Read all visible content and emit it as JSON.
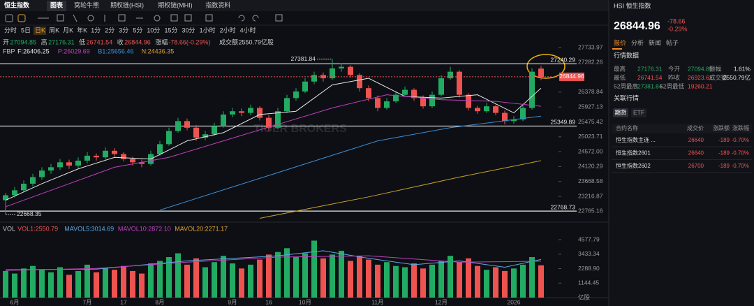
{
  "tabs": [
    "恒生指数",
    "图表",
    "窝轮牛熊",
    "期权链(HSI)",
    "期权链(MHI)",
    "指数资料"
  ],
  "periods": [
    "分时",
    "5日",
    "日K",
    "周K",
    "月K",
    "年K",
    "1分",
    "2分",
    "3分",
    "5分",
    "10分",
    "15分",
    "30分",
    "1小时",
    "2小时",
    "4小时"
  ],
  "quote": [
    {
      "label": "开",
      "value": "27094.85"
    },
    {
      "label": "高",
      "value": "27176.31"
    },
    {
      "label": "低",
      "value": "26741.54"
    },
    {
      "label": "收",
      "value": "26844.96"
    },
    {
      "label": "涨幅",
      "value": "-78.66(-0.29%)"
    },
    {
      "label": "成交额",
      "value": "2550.79亿股"
    }
  ],
  "indicators": {
    "name": "FBP",
    "items": [
      "F:26406.25",
      "P:26029.69",
      "B1:25656.46",
      "N:24436.35"
    ],
    "colors": [
      "#e6e6e6",
      "#c040c0",
      "#3a8fd8",
      "#e0a030"
    ]
  },
  "vol_indicators": {
    "name": "VOL",
    "items": [
      "VOL1:2550.79",
      "MAVOL5:3014.69",
      "MAVOL10:2872.10",
      "MAVOL20:2271.17"
    ],
    "colors": [
      "#ef5350",
      "#5aa9e6",
      "#c040c0",
      "#e0a030"
    ]
  },
  "chart": {
    "type": "candlestick",
    "watermark": "TIGER BROKERS",
    "up_color": "#22ab63",
    "down_color": "#ef5350",
    "ylim": [
      22496,
      27904
    ],
    "yticks": [
      27733.97,
      27282.26,
      26378.84,
      25927.13,
      25475.42,
      25023.71,
      {
        "value": 24572,
        "label": "24572.00"
      },
      24120.29,
      23668.58,
      23216.87,
      22765.16
    ],
    "levels": [
      27240.29,
      25349.89,
      22768.73
    ],
    "high_label": 27381.84,
    "low_label": 22668.35,
    "categories": [
      null,
      "6月",
      null,
      null,
      null,
      null,
      null,
      null,
      null,
      "7月",
      null,
      null,
      null,
      "17",
      null,
      null,
      null,
      "8月",
      null,
      null,
      null,
      null,
      null,
      null,
      null,
      "9月",
      null,
      null,
      null,
      "16",
      null,
      null,
      null,
      "10月",
      null,
      null,
      null,
      null,
      null,
      null,
      null,
      "11月",
      null,
      null,
      null,
      null,
      null,
      null,
      "12月",
      null,
      null,
      null,
      null,
      null,
      null,
      null,
      "2026",
      null,
      null,
      null
    ],
    "candles": [
      [
        23100,
        23320,
        22668.35,
        23250
      ],
      [
        23250,
        23500,
        23180,
        23400
      ],
      [
        23400,
        23700,
        23350,
        23600
      ],
      [
        23600,
        23900,
        23520,
        23800
      ],
      [
        23800,
        24100,
        23720,
        24000
      ],
      [
        24000,
        24200,
        23900,
        24100
      ],
      [
        24100,
        24350,
        24020,
        24250
      ],
      [
        24250,
        24330,
        24050,
        24150
      ],
      [
        24150,
        24400,
        24080,
        24300
      ],
      [
        24300,
        24560,
        24220,
        24450
      ],
      [
        24450,
        24520,
        24300,
        24400
      ],
      [
        24400,
        24700,
        24330,
        24600
      ],
      [
        24600,
        24680,
        24420,
        24500
      ],
      [
        24500,
        24560,
        24280,
        24350
      ],
      [
        24350,
        24420,
        24150,
        24250
      ],
      [
        24250,
        24330,
        24100,
        24200
      ],
      [
        24200,
        24600,
        24150,
        24500
      ],
      [
        24500,
        24900,
        24450,
        24800
      ],
      [
        24800,
        25300,
        24750,
        25200
      ],
      [
        25200,
        25600,
        25150,
        25500
      ],
      [
        25500,
        25580,
        25220,
        25300
      ],
      [
        25300,
        25380,
        24900,
        25000
      ],
      [
        25000,
        25200,
        24920,
        25100
      ],
      [
        25100,
        25450,
        25050,
        25350
      ],
      [
        25350,
        25800,
        25300,
        25700
      ],
      [
        25700,
        25900,
        25620,
        25800
      ],
      [
        25800,
        25880,
        25650,
        25750
      ],
      [
        25750,
        26000,
        25680,
        25900
      ],
      [
        25900,
        25950,
        25520,
        25600
      ],
      [
        25600,
        25680,
        25200,
        25300
      ],
      [
        25300,
        25900,
        25250,
        25800
      ],
      [
        25800,
        26300,
        25750,
        26200
      ],
      [
        26200,
        26500,
        26120,
        26400
      ],
      [
        26400,
        26800,
        26350,
        26700
      ],
      [
        26700,
        27000,
        26620,
        26900
      ],
      [
        26900,
        26980,
        26700,
        26800
      ],
      [
        26800,
        27381.84,
        26750,
        27100
      ],
      [
        27100,
        27250,
        27000,
        27150
      ],
      [
        27150,
        27200,
        26820,
        26900
      ],
      [
        26900,
        26950,
        26400,
        26500
      ],
      [
        26500,
        26580,
        26100,
        26200
      ],
      [
        26200,
        26280,
        25800,
        25900
      ],
      [
        25900,
        26200,
        25850,
        26100
      ],
      [
        26100,
        26400,
        26050,
        26300
      ],
      [
        26300,
        26550,
        26250,
        26450
      ],
      [
        26450,
        26500,
        26120,
        26200
      ],
      [
        26200,
        26280,
        25880,
        25950
      ],
      [
        25950,
        26400,
        25900,
        26300
      ],
      [
        26300,
        26900,
        26250,
        26800
      ],
      [
        26800,
        27150,
        26750,
        27000
      ],
      [
        27000,
        27050,
        26220,
        26300
      ],
      [
        26300,
        26350,
        25820,
        25900
      ],
      [
        25900,
        25960,
        25720,
        25800
      ],
      [
        25800,
        26050,
        25750,
        25950
      ],
      [
        25950,
        26000,
        25680,
        25750
      ],
      [
        25750,
        25820,
        25400,
        25500
      ],
      [
        25500,
        25650,
        25420,
        25550
      ],
      [
        25550,
        26000,
        25500,
        25900
      ],
      [
        25900,
        27100,
        25850,
        27000
      ],
      [
        27094.85,
        27176.31,
        26741.54,
        26844.96
      ]
    ],
    "moving_averages": [
      {
        "color": "#e6e6e6",
        "x": [
          0,
          4,
          8,
          12,
          16,
          20,
          24,
          28,
          32,
          36,
          40,
          44,
          48,
          52,
          56,
          59
        ],
        "values": [
          23100,
          23600,
          24050,
          24400,
          24350,
          24900,
          25150,
          25700,
          25800,
          26600,
          26800,
          26250,
          26200,
          26300,
          25750,
          26500
        ]
      },
      {
        "color": "#c040c0",
        "x": [
          0,
          6,
          12,
          18,
          24,
          30,
          36,
          42,
          48,
          54,
          59
        ],
        "values": [
          22900,
          23500,
          24100,
          24400,
          24900,
          25400,
          25900,
          26300,
          26150,
          26100,
          25950
        ]
      },
      {
        "color": "#3a8fd8",
        "x": [
          17,
          25,
          33,
          41,
          49,
          59
        ],
        "values": [
          22800,
          23500,
          24200,
          24900,
          25300,
          25650
        ]
      },
      {
        "color": "#c9a227",
        "x": [
          28,
          40,
          50,
          59
        ],
        "values": [
          22550,
          23200,
          23800,
          24300
        ]
      }
    ],
    "volumes": [
      2100,
      1900,
      2300,
      2500,
      2200,
      2000,
      2400,
      1800,
      2100,
      2600,
      2000,
      2300,
      2200,
      2500,
      2100,
      1900,
      2700,
      2900,
      3200,
      3500,
      2600,
      3100,
      2400,
      2800,
      3300,
      2700,
      2300,
      2600,
      3000,
      3400,
      3600,
      3900,
      3200,
      3500,
      4500,
      3100,
      3400,
      3700,
      2900,
      3300,
      3000,
      2600,
      2800,
      2500,
      2400,
      2700,
      2300,
      2600,
      2900,
      3300,
      2800,
      3100,
      2500,
      2200,
      2400,
      2100,
      2300,
      2600,
      3200,
      2550.79
    ],
    "vlim": [
      0,
      5020
    ],
    "vticks": [
      4577.79,
      3433.34,
      {
        "value": 2288.9,
        "label": "2288.90"
      },
      1144.45
    ],
    "vunit": "亿股",
    "vol_averages": [
      {
        "color": "#5aa9e6",
        "x": [
          0,
          10,
          20,
          30,
          35,
          40,
          45,
          50,
          55,
          59
        ],
        "values": [
          2200,
          2250,
          2900,
          3300,
          3700,
          3100,
          2600,
          2900,
          2400,
          3014.69
        ]
      },
      {
        "color": "#c040c0",
        "x": [
          0,
          10,
          20,
          30,
          40,
          50,
          59
        ],
        "values": [
          2150,
          2300,
          2800,
          3200,
          3300,
          2800,
          2872.1
        ]
      }
    ]
  },
  "side": {
    "title": "HSI 恒生指数",
    "price": "26844.96",
    "change": "-78.66",
    "change_pct": "-0.29%",
    "tabs": [
      "报价",
      "分析",
      "新闻",
      "帖子"
    ],
    "section1": "行情数据",
    "stats": [
      [
        "最高",
        "27176.31",
        "今开",
        "27094.85",
        "振幅",
        "1.61%"
      ],
      [
        "最低",
        "26741.54",
        "昨收",
        "26923.62",
        "成交额",
        "2550.79亿"
      ],
      [
        "52周最高",
        "27381.84",
        "52周最低",
        "19260.21"
      ]
    ],
    "section2": "关联行情",
    "related_tabs": [
      "期货",
      "ETF"
    ],
    "table": {
      "header": [
        "合约名称",
        "成交价",
        "涨跌额",
        "涨跌幅"
      ],
      "rows": [
        [
          "恒生指数主连 ...",
          "26640",
          "-189",
          "-0.70%"
        ],
        [
          "恒生指数2601",
          "26640",
          "-189",
          "-0.70%"
        ],
        [
          "恒生指数2602",
          "26700",
          "-189",
          "-0.70%"
        ]
      ]
    }
  }
}
